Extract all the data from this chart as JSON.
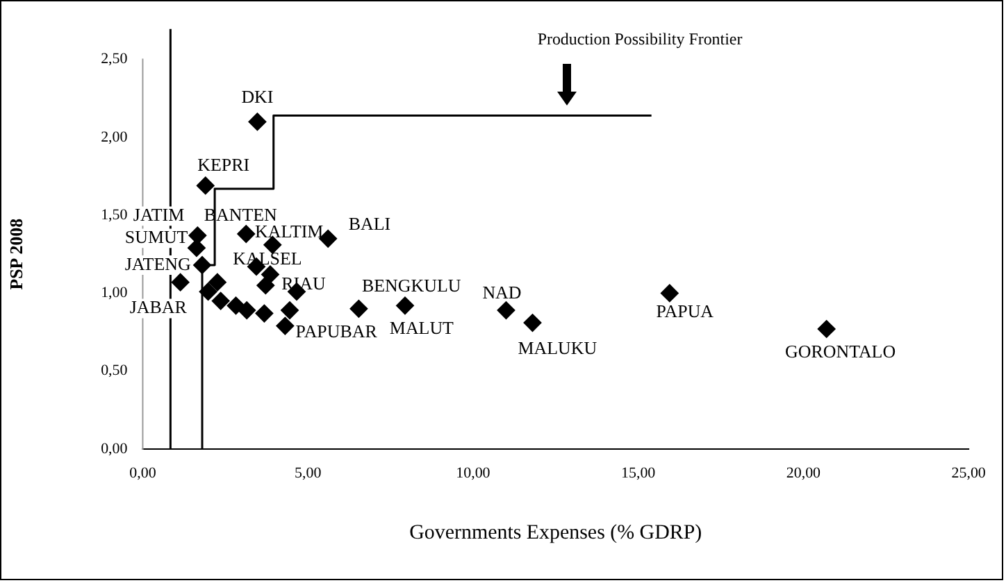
{
  "chart_data": {
    "type": "scatter",
    "xlabel": "Governments Expenses (% GDRP)",
    "ylabel": "PSP 2008",
    "xlim": [
      0,
      25
    ],
    "xticks": [
      {
        "value": 0,
        "label": "0,00"
      },
      {
        "value": 5,
        "label": "5,00"
      },
      {
        "value": 10,
        "label": "10,00"
      },
      {
        "value": 15,
        "label": "15,00"
      },
      {
        "value": 20,
        "label": "20,00"
      },
      {
        "value": 25,
        "label": "25,00"
      }
    ],
    "ylim": [
      0,
      2.5
    ],
    "yticks": [
      {
        "value": 0,
        "label": "0,00"
      },
      {
        "value": 0.5,
        "label": "0,50"
      },
      {
        "value": 1,
        "label": "1,00"
      },
      {
        "value": 1.5,
        "label": "1,50"
      },
      {
        "value": 2,
        "label": "2,00"
      },
      {
        "value": 2.5,
        "label": "2,50"
      }
    ],
    "grid": false,
    "legend": false,
    "marker": "diamond",
    "series": [
      {
        "color": "#000000",
        "x": [
          3.47,
          1.9,
          1.66,
          1.63,
          1.8,
          1.14,
          3.13,
          3.93,
          5.61,
          3.44,
          3.86,
          3.72,
          4.66,
          2.26,
          1.98,
          2.36,
          2.82,
          3.15,
          3.68,
          4.45,
          4.31,
          6.54,
          7.94,
          11.0,
          11.8,
          15.95,
          20.7
        ],
        "values": [
          2.1,
          1.69,
          1.37,
          1.29,
          1.18,
          1.07,
          1.38,
          1.31,
          1.35,
          1.17,
          1.12,
          1.05,
          1.01,
          1.07,
          1.01,
          0.95,
          0.92,
          0.89,
          0.87,
          0.89,
          0.79,
          0.9,
          0.92,
          0.89,
          0.81,
          1.0,
          0.77
        ],
        "value_labels": [
          "DKI",
          "KEPRI",
          "JATIM",
          "SUMUT",
          "JATENG",
          "JABAR",
          "BANTEN",
          "KALTIM",
          "BALI",
          "KALSEL",
          null,
          null,
          "RIAU",
          null,
          null,
          null,
          null,
          null,
          null,
          null,
          "PAPUBAR",
          "BENGKULU",
          "MALUT",
          "NAD",
          "MALUKU",
          "PAPUA",
          "GORONTALO"
        ]
      },
      {
        "type": "line",
        "color": "#000000",
        "line_style": "solid",
        "marker": "none",
        "x": [
          1.8,
          1.8,
          2.18,
          2.18,
          3.96,
          3.96,
          15.4
        ],
        "values": [
          0,
          1.18,
          1.18,
          1.67,
          1.67,
          2.14,
          2.14
        ]
      }
    ],
    "ref_lines": [
      {
        "axis": "x",
        "value": 0.84,
        "color": "#000000"
      }
    ],
    "annotations": [
      "Production Possibility Frontier"
    ]
  }
}
